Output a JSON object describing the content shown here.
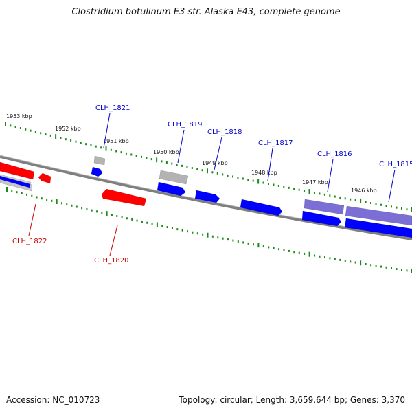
{
  "title": "Clostridium botulinum E3 str. Alaska E43, complete genome",
  "footer": {
    "accession": "Accession: NC_010723",
    "summary": "Topology: circular; Length: 3,659,644 bp; Genes: 3,370"
  },
  "colors": {
    "backbone": "#7f7f7f",
    "forward_strand": "#0000ff",
    "reverse_strand": "#ff0000",
    "pseudo_gene": "#b3b3b3",
    "rna_gene": "#7b6fd6",
    "tick": "#1a8a1a",
    "forward_label": "#0000cc",
    "reverse_label": "#cc0000"
  },
  "scale": {
    "unit": "kbp",
    "labels": [
      "1953 kbp",
      "1952 kbp",
      "1951 kbp",
      "1950 kbp",
      "1949 kbp",
      "1948 kbp",
      "1947 kbp",
      "1946 kbp"
    ]
  },
  "genes": [
    {
      "label": "CLH_1822",
      "strand": "reverse"
    },
    {
      "label": "CLH_1821",
      "strand": "forward"
    },
    {
      "label": "CLH_1820",
      "strand": "reverse"
    },
    {
      "label": "CLH_1819",
      "strand": "forward"
    },
    {
      "label": "CLH_1818",
      "strand": "forward"
    },
    {
      "label": "CLH_1817",
      "strand": "forward"
    },
    {
      "label": "CLH_1816",
      "strand": "forward"
    },
    {
      "label": "CLH_1815",
      "strand": "forward"
    }
  ]
}
